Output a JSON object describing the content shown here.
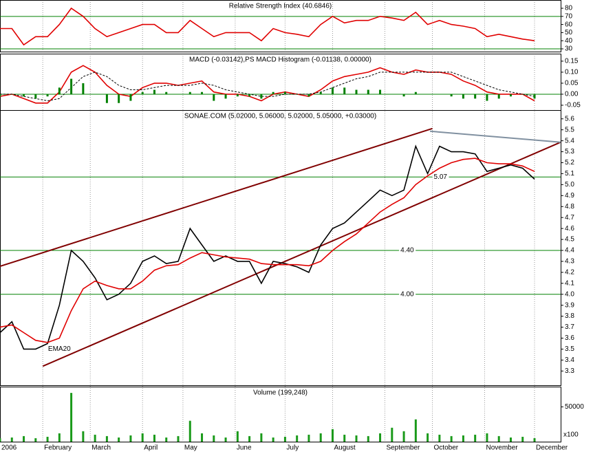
{
  "chart_data": [
    {
      "type": "line",
      "title": "Relative Strength Index (40.6846)",
      "x": [
        0,
        5,
        10,
        15,
        20,
        25,
        30,
        35,
        40,
        45,
        50,
        55,
        60,
        65,
        70,
        75,
        80,
        85,
        90,
        95,
        100,
        105,
        110,
        115,
        120,
        125,
        130,
        135,
        140,
        145,
        150,
        155,
        160,
        165,
        170,
        175,
        180,
        185,
        190,
        195,
        200,
        205,
        210,
        215,
        220,
        225
      ],
      "series": [
        {
          "color": "#e00000",
          "values": [
            55,
            55,
            35,
            45,
            45,
            60,
            80,
            70,
            55,
            45,
            50,
            55,
            60,
            60,
            50,
            50,
            65,
            55,
            45,
            50,
            50,
            50,
            40,
            55,
            50,
            48,
            45,
            60,
            70,
            62,
            65,
            65,
            70,
            68,
            65,
            75,
            60,
            65,
            60,
            58,
            55,
            45,
            48,
            45,
            42,
            40
          ]
        }
      ],
      "levels": [
        30,
        70
      ],
      "level_color": "#008000",
      "ylim": [
        26.6,
        90.2
      ],
      "yticks": [
        30,
        40,
        50,
        60,
        70,
        80
      ]
    },
    {
      "type": "line",
      "title": "MACD (-0.03142),PS MACD Histogram (-0.01138, 0.00000)",
      "x": [
        0,
        5,
        10,
        15,
        20,
        25,
        30,
        35,
        40,
        45,
        50,
        55,
        60,
        65,
        70,
        75,
        80,
        85,
        90,
        95,
        100,
        105,
        110,
        115,
        120,
        125,
        130,
        135,
        140,
        145,
        150,
        155,
        160,
        165,
        170,
        175,
        180,
        185,
        190,
        195,
        200,
        205,
        210,
        215,
        220,
        225
      ],
      "series": [
        {
          "color": "#e00000",
          "values": [
            -0.01,
            0,
            -0.02,
            -0.04,
            -0.04,
            0.01,
            0.1,
            0.13,
            0.1,
            0.04,
            0,
            -0.01,
            0.03,
            0.05,
            0.05,
            0.04,
            0.05,
            0.06,
            0.01,
            0,
            0,
            -0.01,
            -0.03,
            0,
            0.01,
            0,
            -0.01,
            0.02,
            0.06,
            0.08,
            0.09,
            0.1,
            0.12,
            0.1,
            0.09,
            0.11,
            0.1,
            0.1,
            0.09,
            0.06,
            0.04,
            0.01,
            0,
            0,
            0,
            -0.03
          ]
        },
        {
          "color": "#000000",
          "dashed": true,
          "values": [
            0,
            0,
            -0.01,
            -0.02,
            -0.03,
            -0.02,
            0.03,
            0.08,
            0.1,
            0.08,
            0.04,
            0.02,
            0.02,
            0.03,
            0.04,
            0.04,
            0.04,
            0.05,
            0.04,
            0.02,
            0.01,
            0,
            -0.01,
            -0.01,
            0,
            0,
            0,
            0.01,
            0.03,
            0.05,
            0.07,
            0.08,
            0.1,
            0.1,
            0.1,
            0.1,
            0.1,
            0.1,
            0.1,
            0.08,
            0.06,
            0.04,
            0.02,
            0.01,
            0,
            -0.01
          ]
        },
        {
          "color": "#008000",
          "bars": true,
          "values": [
            -0.01,
            0,
            -0.01,
            -0.02,
            -0.01,
            0.03,
            0.07,
            0.05,
            0,
            -0.04,
            -0.04,
            -0.03,
            0.01,
            0.02,
            0.01,
            0,
            0.01,
            0.01,
            -0.03,
            -0.02,
            -0.01,
            -0.01,
            -0.02,
            0.01,
            0.01,
            0,
            -0.01,
            0.01,
            0.03,
            0.03,
            0.02,
            0.02,
            0.02,
            0,
            -0.01,
            0.01,
            0,
            0,
            -0.01,
            -0.02,
            -0.02,
            -0.03,
            -0.02,
            -0.01,
            0,
            -0.02
          ]
        }
      ],
      "levels": [
        0
      ],
      "level_color": "#008000",
      "ylim": [
        -0.072,
        0.184
      ],
      "yticks": [
        0.15,
        {
          "value": 0.1,
          "label": "0.10"
        },
        0.05,
        {
          "value": 0,
          "label": "0.00"
        },
        -0.05
      ]
    },
    {
      "type": "line",
      "title": "SONAE.COM (5.02000, 5.06000, 5.02000, 5.05000, +0.03000)",
      "x": [
        0,
        5,
        10,
        15,
        20,
        25,
        30,
        35,
        40,
        45,
        50,
        55,
        60,
        65,
        70,
        75,
        80,
        85,
        90,
        95,
        100,
        105,
        110,
        115,
        120,
        125,
        130,
        135,
        140,
        145,
        150,
        155,
        160,
        165,
        170,
        175,
        180,
        185,
        190,
        195,
        200,
        205,
        210,
        215,
        220,
        225
      ],
      "series": [
        {
          "color": "#000000",
          "values": [
            3.65,
            3.75,
            3.5,
            3.5,
            3.55,
            3.9,
            4.4,
            4.3,
            4.15,
            3.95,
            4.0,
            4.1,
            4.3,
            4.35,
            4.28,
            4.3,
            4.6,
            4.45,
            4.3,
            4.35,
            4.3,
            4.3,
            4.1,
            4.3,
            4.28,
            4.25,
            4.2,
            4.45,
            4.6,
            4.65,
            4.75,
            4.85,
            4.95,
            4.9,
            4.95,
            5.35,
            5.1,
            5.35,
            5.3,
            5.3,
            5.28,
            5.12,
            5.15,
            5.18,
            5.15,
            5.05
          ]
        },
        {
          "color": "#e00000",
          "label": "EMA20",
          "values": [
            3.7,
            3.72,
            3.65,
            3.58,
            3.56,
            3.6,
            3.85,
            4.05,
            4.12,
            4.08,
            4.05,
            4.05,
            4.12,
            4.22,
            4.26,
            4.27,
            4.33,
            4.38,
            4.36,
            4.34,
            4.33,
            4.32,
            4.28,
            4.27,
            4.27,
            4.27,
            4.26,
            4.3,
            4.4,
            4.48,
            4.55,
            4.65,
            4.75,
            4.82,
            4.88,
            5.0,
            5.08,
            5.15,
            5.2,
            5.23,
            5.24,
            5.2,
            5.19,
            5.19,
            5.17,
            5.12
          ]
        }
      ],
      "levels": [
        {
          "value": 4.4,
          "label": "4.40"
        },
        {
          "value": 4.0,
          "label": "4.00"
        },
        {
          "value": 5.07,
          "label": "5.07"
        }
      ],
      "level_color": "#008000",
      "trendlines": [
        {
          "color": "#800000",
          "x": [
            0,
            182
          ],
          "values": [
            4.255,
            5.512
          ]
        },
        {
          "color": "#800000",
          "x": [
            18,
            236
          ],
          "values": [
            3.344,
            5.387
          ]
        },
        {
          "color": "#8090a0",
          "x": [
            181,
            236
          ],
          "values": [
            5.487,
            5.387
          ]
        }
      ],
      "xlim": [
        0,
        236
      ],
      "xticks": [
        {
          "value": 0,
          "label": "2006"
        },
        {
          "value": 18,
          "label": "February"
        },
        {
          "value": 38,
          "label": "March"
        },
        {
          "value": 60,
          "label": "April"
        },
        {
          "value": 77,
          "label": "May"
        },
        {
          "value": 99,
          "label": "June"
        },
        {
          "value": 120,
          "label": "July"
        },
        {
          "value": 140,
          "label": "August"
        },
        {
          "value": 162,
          "label": "September"
        },
        {
          "value": 182,
          "label": "October"
        },
        {
          "value": 204,
          "label": "November"
        },
        {
          "value": 225,
          "label": "December"
        }
      ],
      "ylim": [
        3.17,
        5.68
      ],
      "yticks": [
        3.3,
        3.4,
        3.5,
        3.6,
        3.7,
        3.8,
        3.9,
        {
          "value": 4,
          "label": "4.0"
        },
        4.1,
        4.2,
        4.3,
        4.4,
        4.5,
        4.6,
        4.7,
        4.8,
        4.9,
        {
          "value": 5,
          "label": "5.0"
        },
        5.1,
        5.2,
        5.3,
        5.4,
        5.5,
        5.6
      ]
    },
    {
      "type": "bar",
      "title": "Volume (199,248)",
      "unit_label": "x100",
      "x": [
        0,
        5,
        10,
        15,
        20,
        25,
        30,
        35,
        40,
        45,
        50,
        55,
        60,
        65,
        70,
        75,
        80,
        85,
        90,
        95,
        100,
        105,
        110,
        115,
        120,
        125,
        130,
        135,
        140,
        145,
        150,
        155,
        160,
        165,
        170,
        175,
        180,
        185,
        190,
        195,
        200,
        205,
        210,
        215,
        220,
        225
      ],
      "values": [
        5000,
        6000,
        8000,
        5000,
        7000,
        12000,
        70000,
        15000,
        10000,
        8000,
        6000,
        9000,
        12000,
        10000,
        6000,
        8000,
        30000,
        12000,
        9000,
        6000,
        15000,
        8000,
        12000,
        6000,
        7000,
        9000,
        10000,
        12000,
        18000,
        10000,
        9000,
        8000,
        12000,
        20000,
        15000,
        32000,
        12000,
        10000,
        8000,
        9000,
        10000,
        12000,
        8000,
        6000,
        7000,
        5000
      ],
      "color": "#1a9a1a",
      "ylim": [
        0,
        79000
      ],
      "yticks": [
        50000
      ]
    }
  ]
}
